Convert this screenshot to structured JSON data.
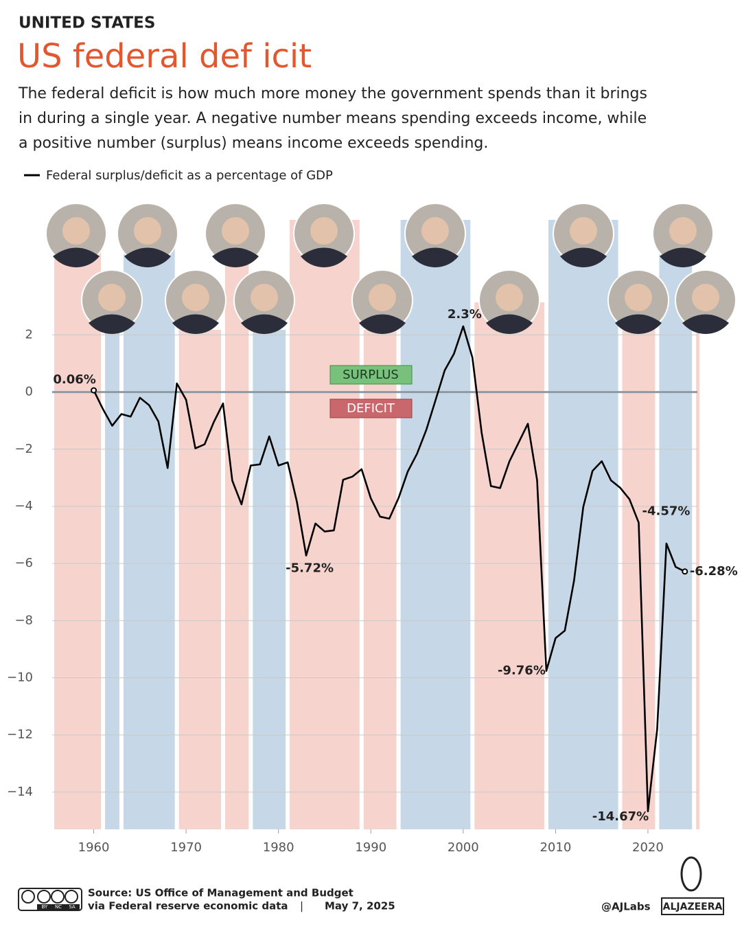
{
  "chart_data": {
    "type": "line",
    "kicker": "UNITED STATES",
    "title": "US federal def icit",
    "subtitle": [
      "The federal deficit is how much more money the government spends than it brings",
      "in during a single year. A negative number means spending exceeds income, while",
      "a positive number (surplus) means income exceeds spending."
    ],
    "annotations": {
      "surplus": "SURPLUS",
      "deficit": "DEFICIT"
    },
    "x": [
      1960,
      1961,
      1962,
      1963,
      1964,
      1965,
      1966,
      1967,
      1968,
      1969,
      1970,
      1971,
      1972,
      1973,
      1974,
      1975,
      1976,
      1977,
      1978,
      1979,
      1980,
      1981,
      1982,
      1983,
      1984,
      1985,
      1986,
      1987,
      1988,
      1989,
      1990,
      1991,
      1992,
      1993,
      1994,
      1995,
      1996,
      1997,
      1998,
      1999,
      2000,
      2001,
      2002,
      2003,
      2004,
      2005,
      2006,
      2007,
      2008,
      2009,
      2010,
      2011,
      2012,
      2013,
      2014,
      2015,
      2016,
      2017,
      2018,
      2019,
      2020,
      2021,
      2022,
      2023,
      2024
    ],
    "series": [
      {
        "name": "Federal surplus/deficit as a percentage of GDP",
        "color": "#000000",
        "values": [
          0.06,
          -0.6,
          -1.18,
          -0.77,
          -0.86,
          -0.2,
          -0.46,
          -1.03,
          -2.66,
          0.3,
          -0.27,
          -1.97,
          -1.83,
          -1.05,
          -0.4,
          -3.1,
          -3.93,
          -2.57,
          -2.53,
          -1.55,
          -2.57,
          -2.46,
          -3.85,
          -5.72,
          -4.6,
          -4.88,
          -4.84,
          -3.07,
          -2.96,
          -2.7,
          -3.72,
          -4.36,
          -4.43,
          -3.71,
          -2.78,
          -2.16,
          -1.33,
          -0.29,
          0.76,
          1.34,
          2.3,
          1.2,
          -1.43,
          -3.29,
          -3.36,
          -2.43,
          -1.77,
          -1.11,
          -3.08,
          -9.76,
          -8.61,
          -8.35,
          -6.6,
          -4.02,
          -2.76,
          -2.42,
          -3.09,
          -3.35,
          -3.75,
          -4.57,
          -14.67,
          -11.8,
          -5.3,
          -6.12,
          -6.28
        ],
        "value_labels": [
          "0.06%",
          null,
          null,
          null,
          null,
          null,
          null,
          null,
          null,
          null,
          null,
          null,
          null,
          null,
          null,
          null,
          null,
          null,
          null,
          null,
          null,
          null,
          null,
          "-5.72%",
          null,
          null,
          null,
          null,
          null,
          null,
          null,
          null,
          null,
          null,
          null,
          null,
          null,
          null,
          null,
          null,
          "2.3%",
          null,
          null,
          null,
          null,
          null,
          null,
          null,
          null,
          "-9.76%",
          null,
          null,
          null,
          null,
          null,
          null,
          null,
          null,
          null,
          "-4.57%",
          "-14.67%",
          null,
          null,
          null,
          "-6.28%"
        ]
      }
    ],
    "xlim": [
      1955.5,
      2025.8
    ],
    "xticks": [
      1960,
      1970,
      1980,
      1990,
      2000,
      2010,
      2020
    ],
    "ylim": [
      -15.3,
      6
    ],
    "yticks": [
      {
        "value": -14,
        "label": "−14"
      },
      {
        "value": -12,
        "label": "−12"
      },
      {
        "value": -10,
        "label": "−10"
      },
      {
        "value": -8,
        "label": "−8"
      },
      {
        "value": -6,
        "label": "−6"
      },
      {
        "value": -4,
        "label": "−4"
      },
      {
        "value": -2,
        "label": "−2"
      },
      0,
      2
    ],
    "grid": true,
    "bands": [
      {
        "start": 1955.5,
        "end": 1961,
        "color": "#f6d3cc"
      },
      {
        "start": 1961,
        "end": 1963,
        "color": "#c6d8e7"
      },
      {
        "start": 1963,
        "end": 1969,
        "color": "#c6d8e7"
      },
      {
        "start": 1969,
        "end": 1974,
        "color": "#f6d3cc"
      },
      {
        "start": 1974,
        "end": 1977,
        "color": "#f6d3cc"
      },
      {
        "start": 1977,
        "end": 1981,
        "color": "#c6d8e7"
      },
      {
        "start": 1981,
        "end": 1989,
        "color": "#f6d3cc"
      },
      {
        "start": 1989,
        "end": 1993,
        "color": "#f6d3cc"
      },
      {
        "start": 1993,
        "end": 2001,
        "color": "#c6d8e7"
      },
      {
        "start": 2001,
        "end": 2009,
        "color": "#f6d3cc"
      },
      {
        "start": 2009,
        "end": 2017,
        "color": "#c6d8e7"
      },
      {
        "start": 2017,
        "end": 2021,
        "color": "#f6d3cc"
      },
      {
        "start": 2021,
        "end": 2025,
        "color": "#c6d8e7"
      },
      {
        "start": 2025,
        "end": 2025.8,
        "color": "#f6d3cc"
      }
    ],
    "footer": {
      "source": "Source:  US Office of Management and Budget",
      "via": "via Federal reserve economic data",
      "separator": "|",
      "date": "May 7, 2025",
      "handle": "@AJLabs",
      "brand": "ALJAZEERA",
      "license": [
        "BY",
        "NC",
        "SA"
      ]
    }
  }
}
